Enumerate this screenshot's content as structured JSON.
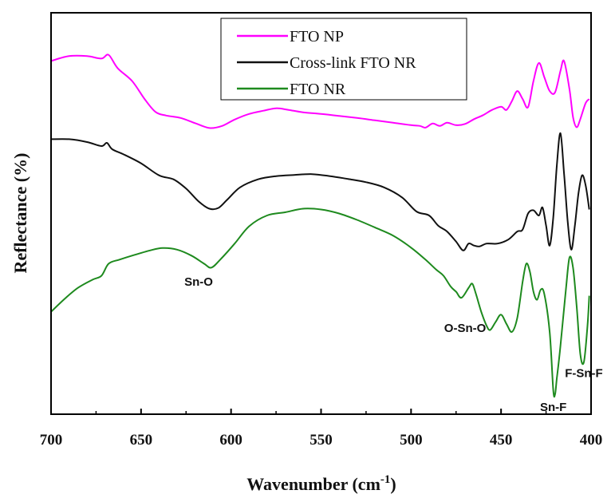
{
  "chart_data": {
    "type": "line",
    "title": "",
    "xlabel": "Wavenumber (cm",
    "xlabel_sup": "-1",
    "xlabel_end": ")",
    "ylabel": "Reflectance (%)",
    "xlim": [
      700,
      400
    ],
    "ylim": [
      0,
      100
    ],
    "x_ticks": [
      700,
      650,
      600,
      550,
      500,
      450,
      400
    ],
    "y_ticks_shown": false,
    "grid": false,
    "legend_position": "top-center",
    "series": [
      {
        "name": "FTO NP",
        "color": "#ff00ff",
        "points": [
          [
            700,
            88
          ],
          [
            690,
            89.2
          ],
          [
            680,
            89.2
          ],
          [
            672,
            88.6
          ],
          [
            668,
            89.5
          ],
          [
            663,
            86.2
          ],
          [
            655,
            83
          ],
          [
            648,
            78.5
          ],
          [
            642,
            75.3
          ],
          [
            636,
            74.4
          ],
          [
            628,
            73.8
          ],
          [
            620,
            72.5
          ],
          [
            612,
            71.3
          ],
          [
            605,
            71.8
          ],
          [
            598,
            73.4
          ],
          [
            590,
            74.8
          ],
          [
            582,
            75.6
          ],
          [
            575,
            76.2
          ],
          [
            568,
            75.8
          ],
          [
            560,
            75.2
          ],
          [
            550,
            74.8
          ],
          [
            540,
            74.3
          ],
          [
            530,
            73.8
          ],
          [
            520,
            73.2
          ],
          [
            510,
            72.6
          ],
          [
            500,
            72
          ],
          [
            495,
            71.8
          ],
          [
            492,
            71.4
          ],
          [
            488,
            72.4
          ],
          [
            484,
            71.8
          ],
          [
            480,
            72.6
          ],
          [
            475,
            72
          ],
          [
            470,
            72.3
          ],
          [
            465,
            73.5
          ],
          [
            460,
            74.5
          ],
          [
            455,
            75.8
          ],
          [
            450,
            76.6
          ],
          [
            447,
            75.8
          ],
          [
            444,
            78
          ],
          [
            441,
            80.5
          ],
          [
            438,
            78.5
          ],
          [
            435,
            76.5
          ],
          [
            432,
            83
          ],
          [
            429,
            87.5
          ],
          [
            426,
            84
          ],
          [
            423,
            80.5
          ],
          [
            420,
            80.2
          ],
          [
            417,
            85.5
          ],
          [
            415,
            88
          ],
          [
            412,
            81
          ],
          [
            410,
            74
          ],
          [
            408,
            71.5
          ],
          [
            406,
            73.5
          ],
          [
            403,
            77.5
          ],
          [
            401,
            78.5
          ]
        ]
      },
      {
        "name": "Cross-link FTO NR",
        "color": "#111111",
        "points": [
          [
            700,
            68.5
          ],
          [
            690,
            68.5
          ],
          [
            680,
            67.8
          ],
          [
            672,
            66.8
          ],
          [
            669,
            67.6
          ],
          [
            666,
            66
          ],
          [
            660,
            64.8
          ],
          [
            650,
            62.5
          ],
          [
            640,
            59.5
          ],
          [
            632,
            58.5
          ],
          [
            625,
            56.2
          ],
          [
            618,
            53
          ],
          [
            612,
            51.2
          ],
          [
            607,
            51.4
          ],
          [
            602,
            53.5
          ],
          [
            595,
            56.5
          ],
          [
            585,
            58.5
          ],
          [
            575,
            59.3
          ],
          [
            565,
            59.6
          ],
          [
            555,
            59.8
          ],
          [
            545,
            59.3
          ],
          [
            535,
            58.6
          ],
          [
            525,
            57.8
          ],
          [
            515,
            56.5
          ],
          [
            505,
            54
          ],
          [
            497,
            50.5
          ],
          [
            490,
            49.5
          ],
          [
            485,
            47
          ],
          [
            480,
            45.5
          ],
          [
            475,
            43
          ],
          [
            471,
            40.8
          ],
          [
            468,
            42.5
          ],
          [
            465,
            42
          ],
          [
            462,
            41.8
          ],
          [
            458,
            42.5
          ],
          [
            452,
            42.5
          ],
          [
            446,
            43.5
          ],
          [
            441,
            45.5
          ],
          [
            438,
            46
          ],
          [
            435,
            50
          ],
          [
            432,
            50.8
          ],
          [
            429,
            49.5
          ],
          [
            427,
            51.5
          ],
          [
            425,
            47
          ],
          [
            423,
            42
          ],
          [
            421,
            49
          ],
          [
            419,
            62
          ],
          [
            417,
            70
          ],
          [
            415,
            60
          ],
          [
            413,
            48
          ],
          [
            411,
            41
          ],
          [
            409,
            47
          ],
          [
            407,
            55
          ],
          [
            405,
            59.5
          ],
          [
            403,
            57
          ],
          [
            401,
            51
          ]
        ]
      },
      {
        "name": "FTO NR",
        "color": "#1e8a1e",
        "points": [
          [
            700,
            25.5
          ],
          [
            693,
            28.5
          ],
          [
            685,
            31.5
          ],
          [
            677,
            33.5
          ],
          [
            672,
            34.5
          ],
          [
            668,
            37.5
          ],
          [
            662,
            38.5
          ],
          [
            655,
            39.5
          ],
          [
            645,
            40.8
          ],
          [
            638,
            41.4
          ],
          [
            630,
            41
          ],
          [
            622,
            39.5
          ],
          [
            615,
            37.5
          ],
          [
            611,
            36.5
          ],
          [
            606,
            38.5
          ],
          [
            598,
            42.5
          ],
          [
            590,
            46.8
          ],
          [
            580,
            49.5
          ],
          [
            570,
            50.3
          ],
          [
            560,
            51.2
          ],
          [
            550,
            51
          ],
          [
            540,
            50
          ],
          [
            530,
            48.4
          ],
          [
            520,
            46.5
          ],
          [
            510,
            44.5
          ],
          [
            500,
            41.5
          ],
          [
            492,
            38.5
          ],
          [
            486,
            36
          ],
          [
            482,
            34.5
          ],
          [
            478,
            31.8
          ],
          [
            475,
            30.5
          ],
          [
            472,
            29
          ],
          [
            468,
            31.5
          ],
          [
            466,
            32.5
          ],
          [
            464,
            30
          ],
          [
            461,
            25.5
          ],
          [
            458,
            22
          ],
          [
            456,
            21
          ],
          [
            453,
            23
          ],
          [
            450,
            24.8
          ],
          [
            447,
            22.5
          ],
          [
            444,
            20.5
          ],
          [
            441,
            24
          ],
          [
            438,
            33
          ],
          [
            436,
            37.5
          ],
          [
            434,
            35.5
          ],
          [
            432,
            30.5
          ],
          [
            430,
            28.5
          ],
          [
            428,
            31
          ],
          [
            426,
            30
          ],
          [
            423,
            20.5
          ],
          [
            421,
            6
          ],
          [
            420,
            5
          ],
          [
            419,
            9
          ],
          [
            417,
            17
          ],
          [
            414,
            31
          ],
          [
            412,
            39
          ],
          [
            410,
            36.5
          ],
          [
            408,
            27
          ],
          [
            406,
            15
          ],
          [
            404,
            13
          ],
          [
            402,
            22
          ],
          [
            401,
            29.5
          ]
        ]
      }
    ],
    "annotations": [
      {
        "text": "Sn-O",
        "x": 618,
        "y": 32
      },
      {
        "text": "O-Sn-O",
        "x": 470,
        "y": 20.5
      },
      {
        "text": "Sn-F",
        "x": 421,
        "y": 0.8
      },
      {
        "text": "F-Sn-F",
        "x": 404,
        "y": 9.2
      }
    ]
  }
}
